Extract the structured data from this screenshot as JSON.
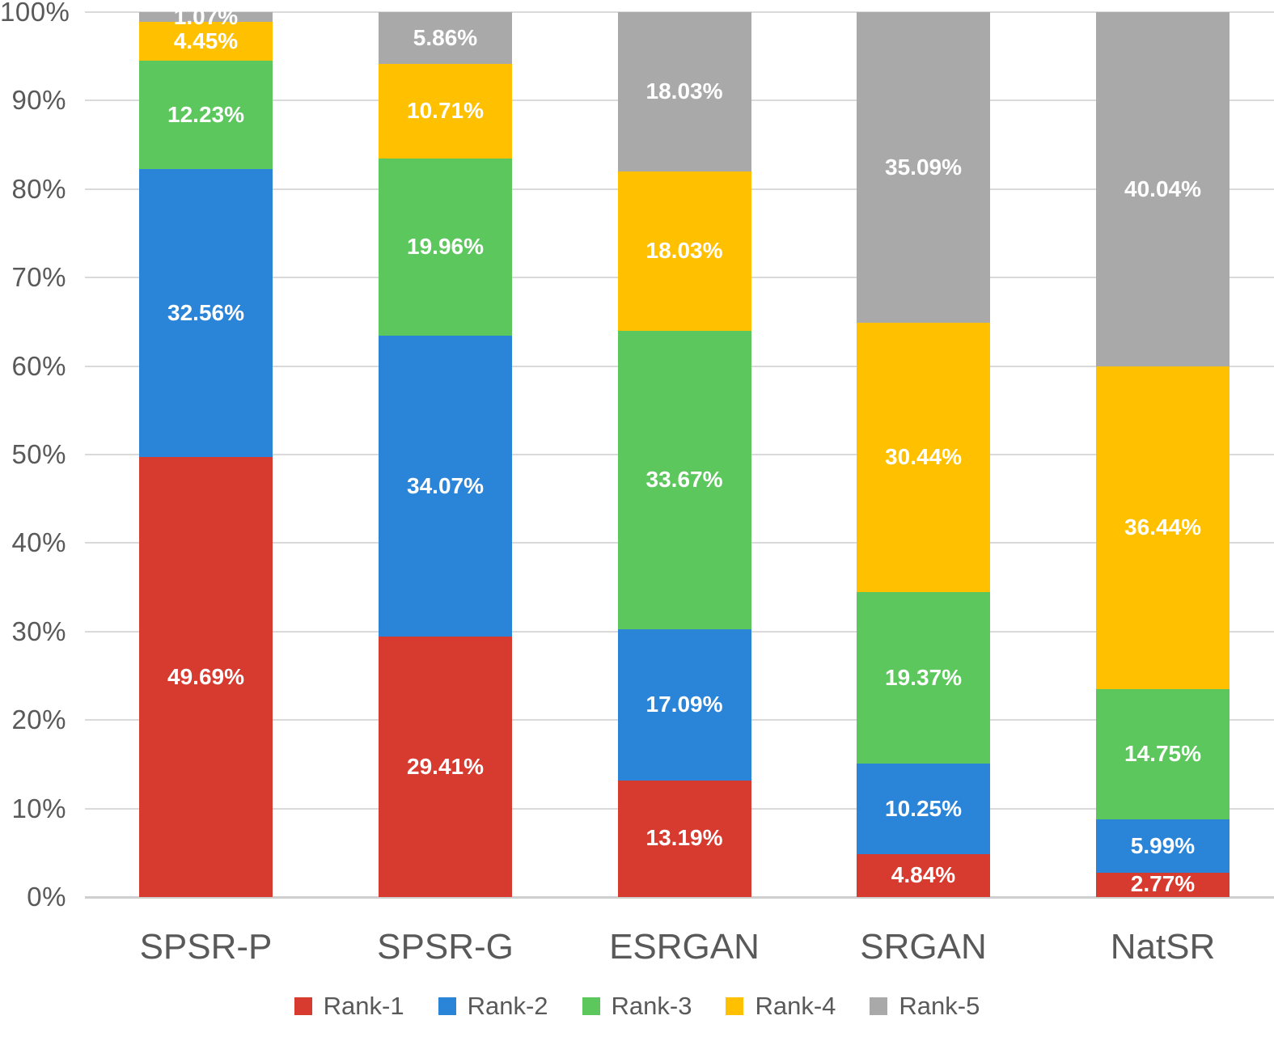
{
  "chart_data": {
    "type": "bar",
    "variant": "stacked-100",
    "orientation": "vertical",
    "title": "",
    "xlabel": "",
    "ylabel": "",
    "categories": [
      "SPSR-P",
      "SPSR-G",
      "ESRGAN",
      "SRGAN",
      "NatSR"
    ],
    "series": [
      {
        "name": "Rank-1",
        "color": "#D73A2E",
        "values": [
          49.69,
          29.41,
          13.19,
          4.84,
          2.77
        ]
      },
      {
        "name": "Rank-2",
        "color": "#2A84D8",
        "values": [
          32.56,
          34.07,
          17.09,
          10.25,
          5.99
        ]
      },
      {
        "name": "Rank-3",
        "color": "#5CC75C",
        "values": [
          12.23,
          19.96,
          33.67,
          19.37,
          14.75
        ]
      },
      {
        "name": "Rank-4",
        "color": "#FFC000",
        "values": [
          4.45,
          10.71,
          18.03,
          30.44,
          36.44
        ]
      },
      {
        "name": "Rank-5",
        "color": "#A9A9A9",
        "values": [
          1.07,
          5.86,
          18.03,
          35.09,
          40.04
        ]
      }
    ],
    "data_label_suffix": "%",
    "y_axis": {
      "min": 0,
      "max": 100,
      "tick_labels": [
        "100%",
        "90%",
        "80%",
        "70%",
        "60%",
        "50%",
        "40%",
        "30%",
        "20%",
        "10%",
        "0%"
      ],
      "grid": true
    },
    "legend": {
      "position": "bottom",
      "entries": [
        "Rank-1",
        "Rank-2",
        "Rank-3",
        "Rank-4",
        "Rank-5"
      ]
    },
    "colors": {
      "grid_line": "#DADADA",
      "axis_line": "#CFCFCF",
      "axis_text": "#595959",
      "data_label_text": "#FFFFFF"
    }
  }
}
